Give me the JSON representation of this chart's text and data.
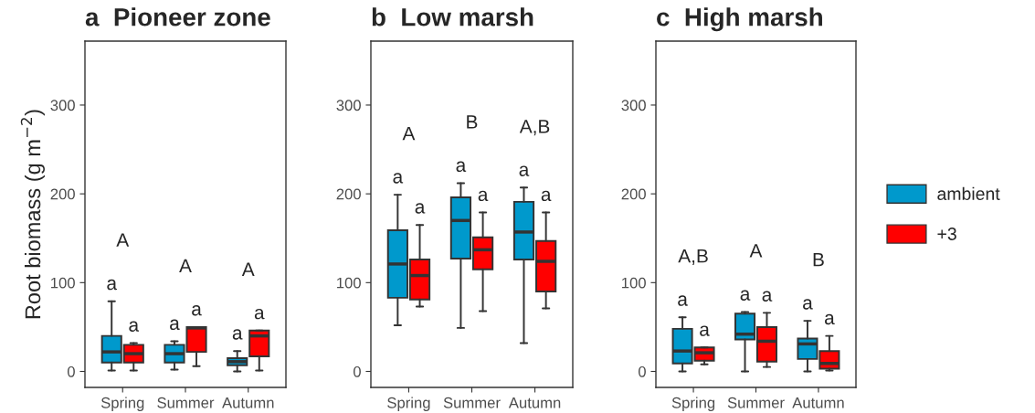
{
  "chart_data": [
    {
      "type": "box",
      "title": "a  Pioneer zone",
      "ylabel": "Root biomass (g m$^{−2}$)",
      "categories": [
        "Spring",
        "Summer",
        "Autumn"
      ],
      "ylim": [
        -18,
        372
      ],
      "yticks": [
        0,
        100,
        200,
        300
      ],
      "grid": false,
      "legend": false,
      "series": [
        {
          "color": "#0099cc",
          "value_labels": [
            "a",
            "a",
            "a"
          ],
          "boxes": [
            {
              "low": 1,
              "q1": 10,
              "median": 22,
              "q3": 40,
              "high": 79
            },
            {
              "low": 2,
              "q1": 10,
              "median": 20,
              "q3": 30,
              "high": 34
            },
            {
              "low": 0,
              "q1": 7,
              "median": 11,
              "q3": 15,
              "high": 23
            }
          ]
        },
        {
          "color": "#ff0000",
          "value_labels": [
            "a",
            "a",
            "a"
          ],
          "boxes": [
            {
              "low": 1,
              "q1": 10,
              "median": 20,
              "q3": 30,
              "high": 32
            },
            {
              "low": 6,
              "q1": 22,
              "median": 49,
              "q3": 50,
              "high": 50
            },
            {
              "low": 1,
              "q1": 17,
              "median": 40,
              "q3": 46,
              "high": 46
            }
          ]
        }
      ],
      "annotations": [
        "A",
        "A",
        "A"
      ]
    },
    {
      "type": "box",
      "title": "b  Low marsh",
      "categories": [
        "Spring",
        "Summer",
        "Autumn"
      ],
      "ylim": [
        -18,
        372
      ],
      "yticks": [
        0,
        100,
        200,
        300
      ],
      "grid": false,
      "legend": false,
      "series": [
        {
          "color": "#0099cc",
          "value_labels": [
            "a",
            "a",
            "a"
          ],
          "boxes": [
            {
              "low": 52,
              "q1": 83,
              "median": 121,
              "q3": 159,
              "high": 199
            },
            {
              "low": 49,
              "q1": 127,
              "median": 170,
              "q3": 196,
              "high": 212
            },
            {
              "low": 32,
              "q1": 126,
              "median": 157,
              "q3": 191,
              "high": 207
            }
          ]
        },
        {
          "color": "#ff0000",
          "value_labels": [
            "a",
            "a",
            "a"
          ],
          "boxes": [
            {
              "low": 73,
              "q1": 81,
              "median": 108,
              "q3": 126,
              "high": 165
            },
            {
              "low": 68,
              "q1": 115,
              "median": 137,
              "q3": 151,
              "high": 179
            },
            {
              "low": 71,
              "q1": 90,
              "median": 124,
              "q3": 147,
              "high": 179
            }
          ]
        }
      ],
      "annotations": [
        "A",
        "B",
        "A,B"
      ]
    },
    {
      "type": "box",
      "title": "c  High marsh",
      "categories": [
        "Spring",
        "Summer",
        "Autumn"
      ],
      "ylim": [
        -18,
        372
      ],
      "yticks": [
        0,
        100,
        200,
        300
      ],
      "grid": false,
      "legend": "right",
      "series": [
        {
          "name": "ambient",
          "color": "#0099cc",
          "value_labels": [
            "a",
            "a",
            "a"
          ],
          "boxes": [
            {
              "low": 0,
              "q1": 9,
              "median": 23,
              "q3": 48,
              "high": 61
            },
            {
              "low": 0,
              "q1": 36,
              "median": 42,
              "q3": 65,
              "high": 67
            },
            {
              "low": 0,
              "q1": 14,
              "median": 31,
              "q3": 37,
              "high": 57
            }
          ]
        },
        {
          "name": "+3",
          "color": "#ff0000",
          "value_labels": [
            "a",
            "a",
            "a"
          ],
          "boxes": [
            {
              "low": 8,
              "q1": 12,
              "median": 21,
              "q3": 27,
              "high": 27
            },
            {
              "low": 5,
              "q1": 11,
              "median": 34,
              "q3": 50,
              "high": 66
            },
            {
              "low": 1,
              "q1": 3,
              "median": 9,
              "q3": 23,
              "high": 40
            }
          ]
        }
      ],
      "annotations": [
        "A,B",
        "A",
        "B"
      ]
    }
  ]
}
